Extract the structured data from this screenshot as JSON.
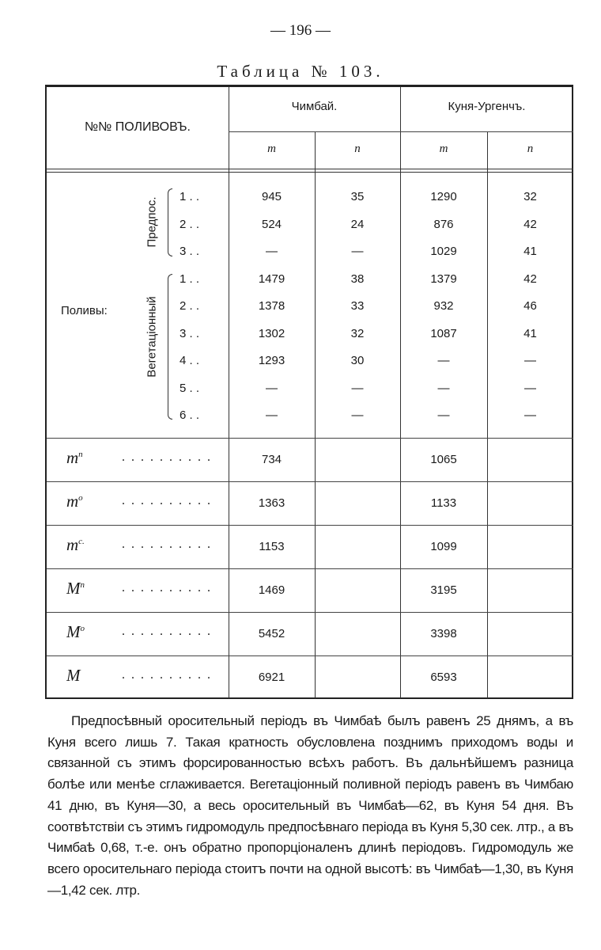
{
  "page_number": "— 196 —",
  "table_title": "Таблица № 103.",
  "header": {
    "row_label": "№№ ПОЛИВОВЪ.",
    "col_chimbai": "Чимбай.",
    "col_kunya": "Куня-Ургенчъ.",
    "sub_m": "m",
    "sub_n": "n"
  },
  "group_label": "Поливы:",
  "subgroups": [
    "Предпос.",
    "Вегетаціонный"
  ],
  "rows": [
    {
      "label": "1 . .",
      "chimbai_m": "945",
      "chimbai_n": "35",
      "kunya_m": "1290",
      "kunya_n": "32"
    },
    {
      "label": "2 . .",
      "chimbai_m": "524",
      "chimbai_n": "24",
      "kunya_m": "876",
      "kunya_n": "42"
    },
    {
      "label": "3 . .",
      "chimbai_m": "—",
      "chimbai_n": "—",
      "kunya_m": "1029",
      "kunya_n": "41"
    },
    {
      "label": "1 . .",
      "chimbai_m": "1479",
      "chimbai_n": "38",
      "kunya_m": "1379",
      "kunya_n": "42"
    },
    {
      "label": "2 . .",
      "chimbai_m": "1378",
      "chimbai_n": "33",
      "kunya_m": "932",
      "kunya_n": "46"
    },
    {
      "label": "3 . .",
      "chimbai_m": "1302",
      "chimbai_n": "32",
      "kunya_m": "1087",
      "kunya_n": "41"
    },
    {
      "label": "4 . .",
      "chimbai_m": "1293",
      "chimbai_n": "30",
      "kunya_m": "—",
      "kunya_n": "—"
    },
    {
      "label": "5 . .",
      "chimbai_m": "—",
      "chimbai_n": "—",
      "kunya_m": "—",
      "kunya_n": "—"
    },
    {
      "label": "6 . .",
      "chimbai_m": "—",
      "chimbai_n": "—",
      "kunya_m": "—",
      "kunya_n": "—"
    }
  ],
  "summary": [
    {
      "base": "m",
      "sup": "п",
      "chimbai": "734",
      "kunya": "1065"
    },
    {
      "base": "m",
      "sup": "о",
      "chimbai": "1363",
      "kunya": "1133"
    },
    {
      "base": "m",
      "sup": "с.",
      "chimbai": "1153",
      "kunya": "1099"
    },
    {
      "base": "M",
      "sup": "п",
      "chimbai": "1469",
      "kunya": "3195"
    },
    {
      "base": "M",
      "sup": "о",
      "chimbai": "5452",
      "kunya": "3398"
    },
    {
      "base": "M",
      "sup": "",
      "chimbai": "6921",
      "kunya": "6593"
    }
  ],
  "leader_dots": ". . . . . . . . . .",
  "paragraph": "Предпосѣвный оросительный періодъ въ Чимбаѣ былъ равенъ 25 днямъ, а въ Куня всего лишь 7. Такая кратность обусловлена позднимъ приходомъ воды и связанной съ этимъ форсированностью всѣхъ работъ. Въ дальнѣйшемъ разница болѣе или менѣе сглаживается. Вегетаціонный поливной періодъ равенъ въ Чимбаю 41 дню, въ Куня—30, а весь оросительный въ Чимбаѣ—62, въ Куня 54 дня. Въ соотвѣтствіи съ этимъ гидромодуль предпосѣвнаго періода въ Куня 5,30 сек. лтр., а въ Чимбаѣ 0,68, т.-е. онъ обратно пропорціоналенъ длинѣ періодовъ. Гидромодуль же всего оросительнаго періода стоитъ почти на одной высотѣ: въ Чимбаѣ—1,30, въ Куня—1,42 сек. лтр."
}
